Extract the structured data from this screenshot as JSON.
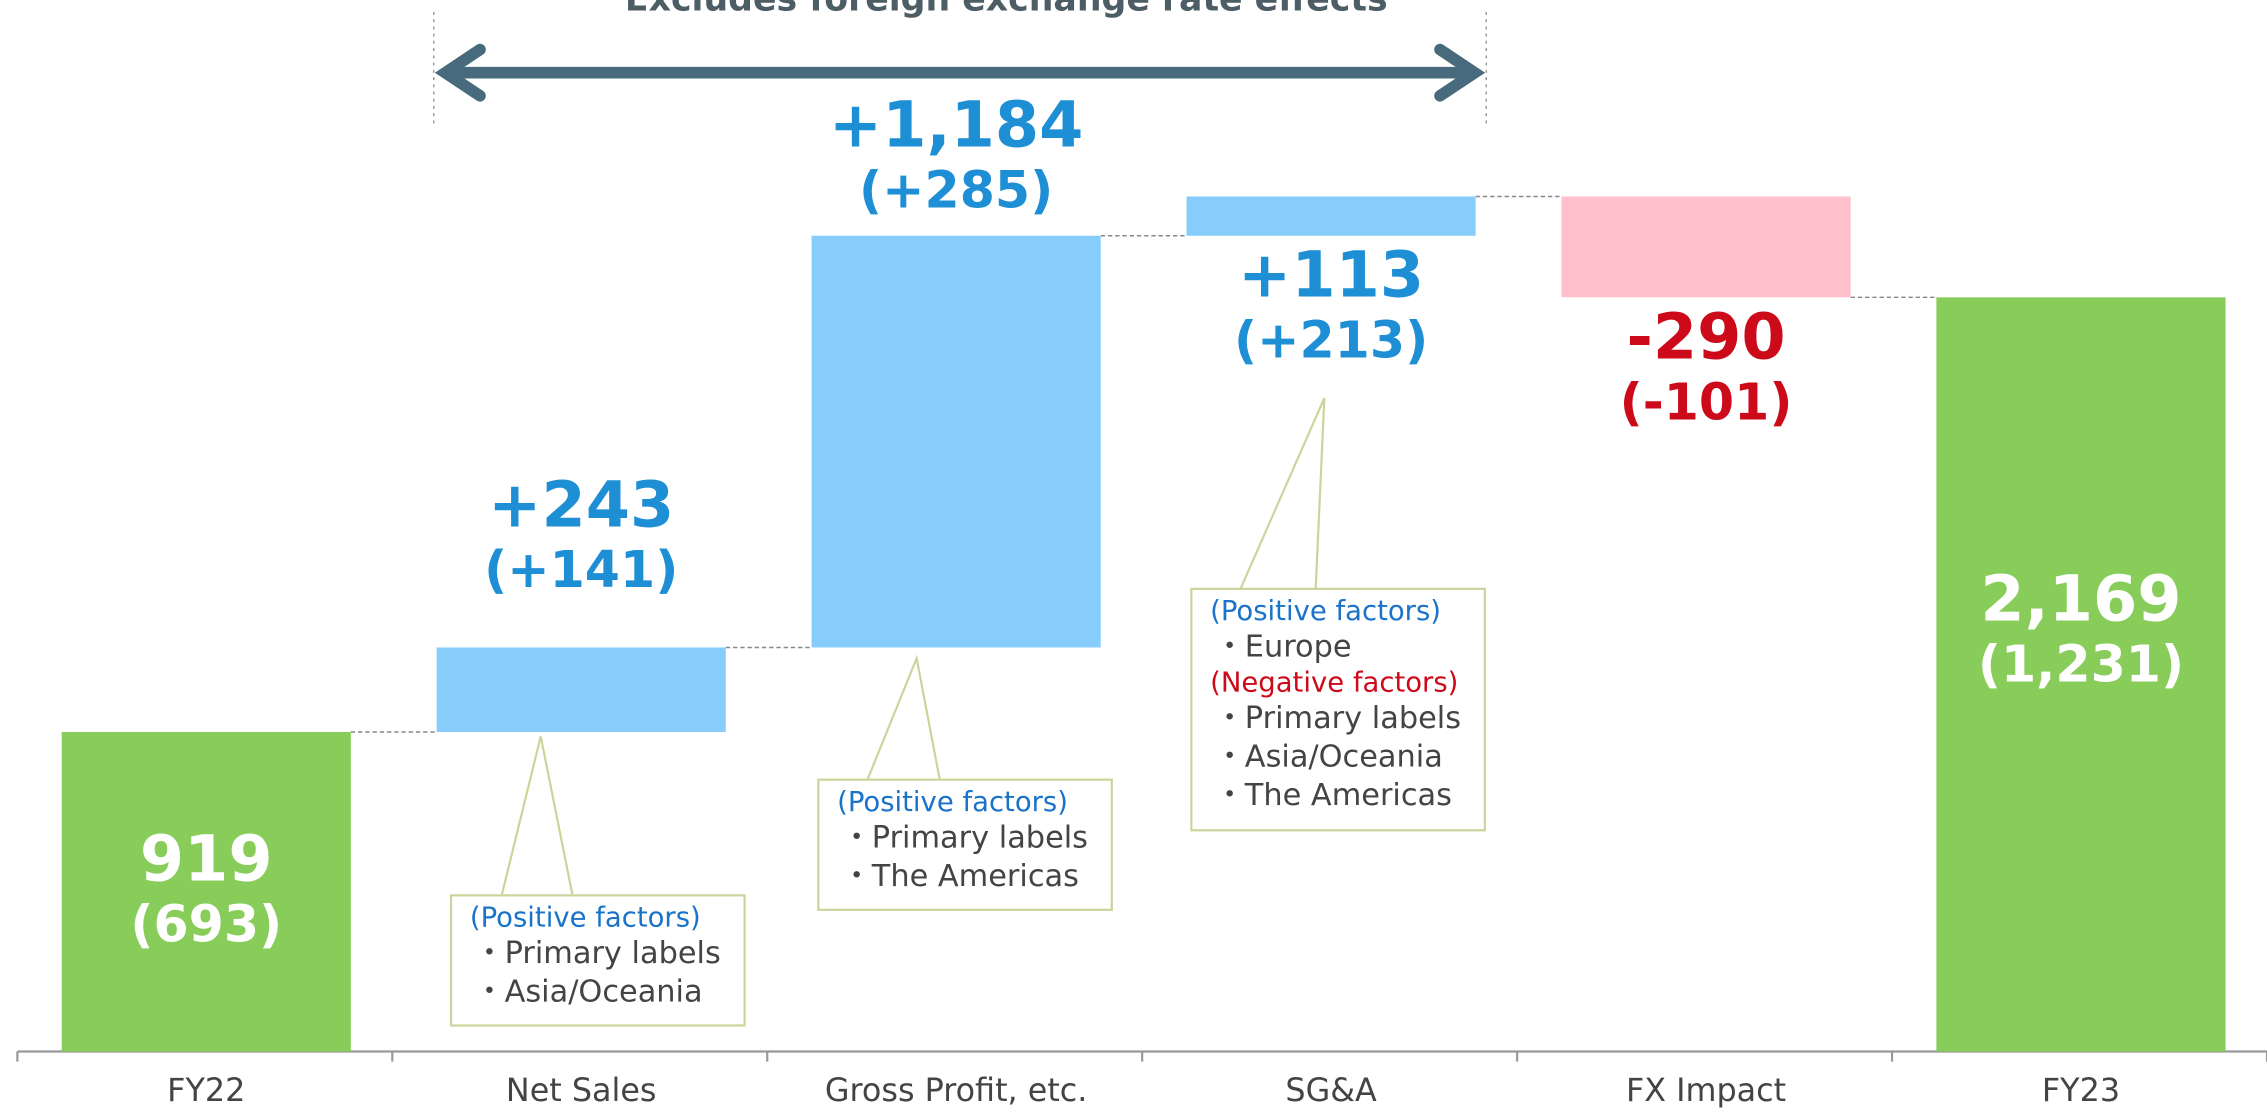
{
  "chart_data": {
    "type": "waterfall",
    "annotation": "Excludes foreign exchange rate effects",
    "categories": [
      "FY22",
      "Net Sales",
      "Gross Profit, etc.",
      "SG&A",
      "FX Impact",
      "FY23"
    ],
    "measures": [
      "absolute",
      "relative",
      "relative",
      "relative",
      "relative",
      "absolute"
    ],
    "values": [
      919,
      243,
      1184,
      113,
      -290,
      2169
    ],
    "value_labels": [
      "919",
      "+243",
      "+1,184",
      "+113",
      "-290",
      "2,169"
    ],
    "sub_values": [
      693,
      141,
      285,
      213,
      -101,
      1231
    ],
    "sub_value_labels": [
      "(693)",
      "(+141)",
      "(+285)",
      "(+213)",
      "(-101)",
      "(1,231)"
    ],
    "colors": {
      "total": "#88cc5a",
      "increase": "#87cdfc",
      "decrease": "#ffc0cb"
    },
    "label_colors": {
      "total": "#ffffff",
      "increase": "#1e8fd5",
      "decrease": "#cc0a1a"
    },
    "ylim": [
      0,
      3000
    ],
    "callouts": [
      {
        "groups": [
          {
            "heading": "(Positive factors)",
            "color": "#1a73c9",
            "items": [
              "・Primary labels",
              "・Asia/Oceania"
            ]
          }
        ]
      },
      {
        "groups": [
          {
            "heading": "(Positive factors)",
            "color": "#1a73c9",
            "items": [
              "・Primary labels",
              "・The Americas"
            ]
          }
        ]
      },
      {
        "groups": [
          {
            "heading": "(Positive factors)",
            "color": "#1a73c9",
            "items": [
              "・Europe"
            ]
          },
          {
            "heading": "(Negative factors)",
            "color": "#cc0a1a",
            "items": [
              "・Primary labels",
              "・Asia/Oceania",
              "・The Americas"
            ]
          }
        ]
      }
    ]
  }
}
